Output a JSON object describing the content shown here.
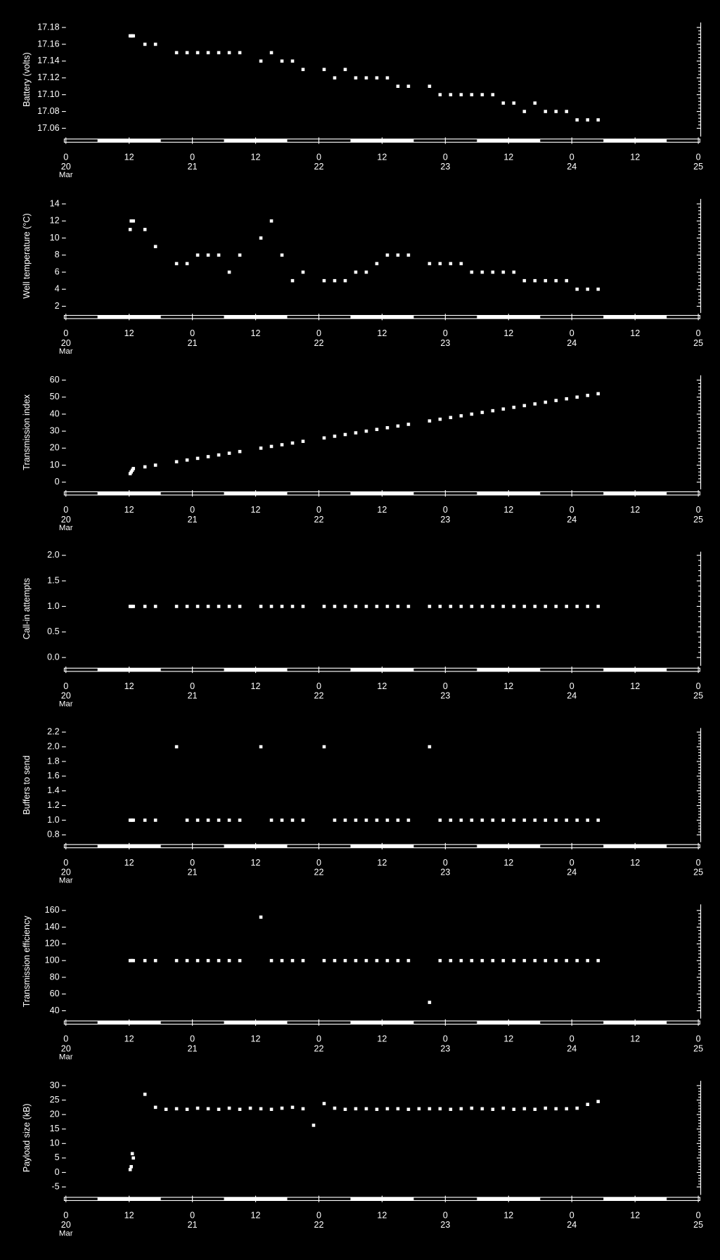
{
  "chart_data": [
    {
      "type": "scatter",
      "ylabel": "Battery (volts)",
      "color": "#ffffff",
      "x": [
        12.2,
        12.4,
        12.6,
        12.8,
        15,
        17,
        21,
        23,
        25,
        27,
        29,
        31,
        33,
        37,
        39,
        41,
        43,
        45,
        49,
        51,
        53,
        55,
        57,
        59,
        61,
        63,
        65,
        69,
        71,
        73,
        75,
        77,
        79,
        81,
        83,
        85,
        87,
        89,
        91,
        93,
        95,
        97,
        99,
        101
      ],
      "values": [
        17.17,
        17.17,
        17.17,
        17.17,
        17.16,
        17.16,
        17.15,
        17.15,
        17.15,
        17.15,
        17.15,
        17.15,
        17.15,
        17.14,
        17.15,
        17.14,
        17.14,
        17.13,
        17.13,
        17.12,
        17.13,
        17.12,
        17.12,
        17.12,
        17.12,
        17.11,
        17.11,
        17.11,
        17.1,
        17.1,
        17.1,
        17.1,
        17.1,
        17.1,
        17.09,
        17.09,
        17.08,
        17.09,
        17.08,
        17.08,
        17.08,
        17.07,
        17.07,
        17.07
      ],
      "xlim": [
        0,
        120
      ],
      "xticks": [
        0,
        12,
        {
          "value": 24,
          "label": "0"
        },
        {
          "value": 36,
          "label": "12"
        },
        {
          "value": 48,
          "label": "0"
        },
        {
          "value": 60,
          "label": "12"
        },
        {
          "value": 72,
          "label": "0"
        },
        {
          "value": 84,
          "label": "12"
        },
        {
          "value": 96,
          "label": "0"
        },
        {
          "value": 108,
          "label": "12"
        },
        {
          "value": 120,
          "label": "0"
        }
      ],
      "xday_labels": [
        {
          "value": 0,
          "label": "20"
        },
        {
          "value": 24,
          "label": "21"
        },
        {
          "value": 48,
          "label": "22"
        },
        {
          "value": 72,
          "label": "23"
        },
        {
          "value": 96,
          "label": "24"
        },
        {
          "value": 120,
          "label": "25"
        }
      ],
      "xmonth": "Mar",
      "ylim": [
        17.052,
        17.184
      ],
      "yticks": [
        17.06,
        17.08,
        {
          "value": 17.1,
          "label": "17.10"
        },
        17.12,
        17.14,
        17.16,
        17.18
      ]
    },
    {
      "type": "scatter",
      "ylabel": "Well temperature (°C)",
      "color": "#ffffff",
      "x": [
        12.2,
        12.4,
        12.6,
        12.8,
        15,
        17,
        21,
        23,
        25,
        27,
        29,
        31,
        33,
        37,
        39,
        41,
        43,
        45,
        49,
        51,
        53,
        55,
        57,
        59,
        61,
        63,
        65,
        69,
        71,
        73,
        75,
        77,
        79,
        81,
        83,
        85,
        87,
        89,
        91,
        93,
        95,
        97,
        99,
        101
      ],
      "values": [
        11,
        12,
        12,
        12,
        11,
        9,
        7,
        7,
        8,
        8,
        8,
        6,
        8,
        10,
        12,
        8,
        5,
        6,
        5,
        5,
        5,
        6,
        6,
        7,
        8,
        8,
        8,
        7,
        7,
        7,
        7,
        6,
        6,
        6,
        6,
        6,
        5,
        5,
        5,
        5,
        5,
        4,
        4,
        4
      ],
      "xlim": [
        0,
        120
      ],
      "xticks": [
        0,
        12,
        {
          "value": 24,
          "label": "0"
        },
        {
          "value": 36,
          "label": "12"
        },
        {
          "value": 48,
          "label": "0"
        },
        {
          "value": 60,
          "label": "12"
        },
        {
          "value": 72,
          "label": "0"
        },
        {
          "value": 84,
          "label": "12"
        },
        {
          "value": 96,
          "label": "0"
        },
        {
          "value": 108,
          "label": "12"
        },
        {
          "value": 120,
          "label": "0"
        }
      ],
      "xday_labels": [
        {
          "value": 0,
          "label": "20"
        },
        {
          "value": 24,
          "label": "21"
        },
        {
          "value": 48,
          "label": "22"
        },
        {
          "value": 72,
          "label": "23"
        },
        {
          "value": 96,
          "label": "24"
        },
        {
          "value": 120,
          "label": "25"
        }
      ],
      "xmonth": "Mar",
      "ylim": [
        1.4,
        14.4
      ],
      "yticks": [
        2,
        4,
        6,
        8,
        10,
        12,
        14
      ]
    },
    {
      "type": "scatter",
      "ylabel": "Transmission index",
      "color": "#ffffff",
      "x": [
        12.2,
        12.4,
        12.6,
        12.8,
        15,
        17,
        21,
        23,
        25,
        27,
        29,
        31,
        33,
        37,
        39,
        41,
        43,
        45,
        49,
        51,
        53,
        55,
        57,
        59,
        61,
        63,
        65,
        69,
        71,
        73,
        75,
        77,
        79,
        81,
        83,
        85,
        87,
        89,
        91,
        93,
        95,
        97,
        99,
        101
      ],
      "values": [
        5,
        6,
        7,
        8,
        9,
        10,
        12,
        13,
        14,
        15,
        16,
        17,
        18,
        20,
        21,
        22,
        23,
        24,
        26,
        27,
        28,
        29,
        30,
        31,
        32,
        33,
        34,
        36,
        37,
        38,
        39,
        40,
        41,
        42,
        43,
        44,
        45,
        46,
        47,
        48,
        49,
        50,
        51,
        52
      ],
      "xlim": [
        0,
        120
      ],
      "xticks": [
        0,
        12,
        {
          "value": 24,
          "label": "0"
        },
        {
          "value": 36,
          "label": "12"
        },
        {
          "value": 48,
          "label": "0"
        },
        {
          "value": 60,
          "label": "12"
        },
        {
          "value": 72,
          "label": "0"
        },
        {
          "value": 84,
          "label": "12"
        },
        {
          "value": 96,
          "label": "0"
        },
        {
          "value": 108,
          "label": "12"
        },
        {
          "value": 120,
          "label": "0"
        }
      ],
      "xday_labels": [
        {
          "value": 0,
          "label": "20"
        },
        {
          "value": 24,
          "label": "21"
        },
        {
          "value": 48,
          "label": "22"
        },
        {
          "value": 72,
          "label": "23"
        },
        {
          "value": 96,
          "label": "24"
        },
        {
          "value": 120,
          "label": "25"
        }
      ],
      "xmonth": "Mar",
      "ylim": [
        -3.3,
        61.9
      ],
      "yticks": [
        0,
        10,
        20,
        30,
        40,
        50,
        60
      ]
    },
    {
      "type": "scatter",
      "ylabel": "Call-in attempts",
      "color": "#ffffff",
      "x": [
        12.2,
        12.4,
        12.6,
        12.8,
        15,
        17,
        21,
        23,
        25,
        27,
        29,
        31,
        33,
        37,
        39,
        41,
        43,
        45,
        49,
        51,
        53,
        55,
        57,
        59,
        61,
        63,
        65,
        69,
        71,
        73,
        75,
        77,
        79,
        81,
        83,
        85,
        87,
        89,
        91,
        93,
        95,
        97,
        99,
        101
      ],
      "values": [
        1,
        1,
        1,
        1,
        1,
        1,
        1,
        1,
        1,
        1,
        1,
        1,
        1,
        1,
        1,
        1,
        1,
        1,
        1,
        1,
        1,
        1,
        1,
        1,
        1,
        1,
        1,
        1,
        1,
        1,
        1,
        1,
        1,
        1,
        1,
        1,
        1,
        1,
        1,
        1,
        1,
        1,
        1,
        1
      ],
      "xlim": [
        0,
        120
      ],
      "xticks": [
        0,
        12,
        {
          "value": 24,
          "label": "0"
        },
        {
          "value": 36,
          "label": "12"
        },
        {
          "value": 48,
          "label": "0"
        },
        {
          "value": 60,
          "label": "12"
        },
        {
          "value": 72,
          "label": "0"
        },
        {
          "value": 84,
          "label": "12"
        },
        {
          "value": 96,
          "label": "0"
        },
        {
          "value": 108,
          "label": "12"
        },
        {
          "value": 120,
          "label": "0"
        }
      ],
      "xday_labels": [
        {
          "value": 0,
          "label": "20"
        },
        {
          "value": 24,
          "label": "21"
        },
        {
          "value": 48,
          "label": "22"
        },
        {
          "value": 72,
          "label": "23"
        },
        {
          "value": 96,
          "label": "24"
        },
        {
          "value": 120,
          "label": "25"
        }
      ],
      "xmonth": "Mar",
      "ylim": [
        -0.13,
        2.04
      ],
      "yticks": [
        {
          "value": 0,
          "label": "0.0"
        },
        0.5,
        {
          "value": 1,
          "label": "1.0"
        },
        1.5,
        {
          "value": 2,
          "label": "2.0"
        }
      ]
    },
    {
      "type": "scatter",
      "ylabel": "Buffers to send",
      "color": "#ffffff",
      "x": [
        12.2,
        12.4,
        12.6,
        12.8,
        15,
        17,
        21,
        23,
        25,
        27,
        29,
        31,
        33,
        37,
        39,
        41,
        43,
        45,
        49,
        51,
        53,
        55,
        57,
        59,
        61,
        63,
        65,
        69,
        71,
        73,
        75,
        77,
        79,
        81,
        83,
        85,
        87,
        89,
        91,
        93,
        95,
        97,
        99,
        101
      ],
      "values": [
        1,
        1,
        1,
        1,
        1,
        1,
        2,
        1,
        1,
        1,
        1,
        1,
        1,
        2,
        1,
        1,
        1,
        1,
        2,
        1,
        1,
        1,
        1,
        1,
        1,
        1,
        1,
        2,
        1,
        1,
        1,
        1,
        1,
        1,
        1,
        1,
        1,
        1,
        1,
        1,
        1,
        1,
        1,
        1
      ],
      "xlim": [
        0,
        120
      ],
      "xticks": [
        0,
        12,
        {
          "value": 24,
          "label": "0"
        },
        {
          "value": 36,
          "label": "12"
        },
        {
          "value": 48,
          "label": "0"
        },
        {
          "value": 60,
          "label": "12"
        },
        {
          "value": 72,
          "label": "0"
        },
        {
          "value": 84,
          "label": "12"
        },
        {
          "value": 96,
          "label": "0"
        },
        {
          "value": 108,
          "label": "12"
        },
        {
          "value": 120,
          "label": "0"
        }
      ],
      "xday_labels": [
        {
          "value": 0,
          "label": "20"
        },
        {
          "value": 24,
          "label": "21"
        },
        {
          "value": 48,
          "label": "22"
        },
        {
          "value": 72,
          "label": "23"
        },
        {
          "value": 96,
          "label": "24"
        },
        {
          "value": 120,
          "label": "25"
        }
      ],
      "xmonth": "Mar",
      "ylim": [
        0.723,
        2.233
      ],
      "yticks": [
        0.8,
        {
          "value": 1,
          "label": "1.0"
        },
        1.2,
        1.4,
        1.6,
        1.8,
        {
          "value": 2,
          "label": "2.0"
        },
        2.2
      ]
    },
    {
      "type": "scatter",
      "ylabel": "Transmission efficiency",
      "color": "#ffffff",
      "x": [
        12.2,
        12.4,
        12.6,
        12.8,
        15,
        17,
        21,
        23,
        25,
        27,
        29,
        31,
        33,
        37,
        39,
        41,
        43,
        45,
        49,
        51,
        53,
        55,
        57,
        59,
        61,
        63,
        65,
        69,
        71,
        73,
        75,
        77,
        79,
        81,
        83,
        85,
        87,
        89,
        91,
        93,
        95,
        97,
        99,
        101
      ],
      "values": [
        100,
        100,
        100,
        100,
        100,
        100,
        100,
        100,
        100,
        100,
        100,
        100,
        100,
        152,
        100,
        100,
        100,
        100,
        100,
        100,
        100,
        100,
        100,
        100,
        100,
        100,
        100,
        50,
        100,
        100,
        100,
        100,
        100,
        100,
        100,
        100,
        100,
        100,
        100,
        100,
        100,
        100,
        100,
        100
      ],
      "xlim": [
        0,
        120
      ],
      "xticks": [
        0,
        12,
        {
          "value": 24,
          "label": "0"
        },
        {
          "value": 36,
          "label": "12"
        },
        {
          "value": 48,
          "label": "0"
        },
        {
          "value": 60,
          "label": "12"
        },
        {
          "value": 72,
          "label": "0"
        },
        {
          "value": 84,
          "label": "12"
        },
        {
          "value": 96,
          "label": "0"
        },
        {
          "value": 108,
          "label": "12"
        },
        {
          "value": 120,
          "label": "0"
        }
      ],
      "xday_labels": [
        {
          "value": 0,
          "label": "20"
        },
        {
          "value": 24,
          "label": "21"
        },
        {
          "value": 48,
          "label": "22"
        },
        {
          "value": 72,
          "label": "23"
        },
        {
          "value": 96,
          "label": "24"
        },
        {
          "value": 120,
          "label": "25"
        }
      ],
      "xmonth": "Mar",
      "ylim": [
        32.6,
        165.3
      ],
      "yticks": [
        40,
        60,
        80,
        100,
        120,
        140,
        160
      ]
    },
    {
      "type": "scatter",
      "ylabel": "Payload size (kB)",
      "color": "#ffffff",
      "x": [
        12.2,
        12.4,
        12.6,
        12.8,
        15,
        17,
        19,
        21,
        23,
        25,
        27,
        29,
        31,
        33,
        35,
        37,
        39,
        41,
        43,
        45,
        47,
        49,
        51,
        53,
        55,
        57,
        59,
        61,
        63,
        65,
        67,
        69,
        71,
        73,
        75,
        77,
        79,
        81,
        83,
        85,
        87,
        89,
        91,
        93,
        95,
        97,
        99,
        101
      ],
      "values": [
        1,
        2,
        6.5,
        5,
        27,
        22.5,
        21.8,
        22,
        21.8,
        22.2,
        22,
        21.8,
        22.2,
        21.8,
        22.2,
        22,
        21.8,
        22.2,
        22.5,
        22,
        16.3,
        23.8,
        22.2,
        21.8,
        22,
        22,
        21.8,
        22,
        22,
        21.8,
        22,
        22,
        22,
        21.8,
        22,
        22.2,
        22,
        21.8,
        22.2,
        21.8,
        22,
        21.8,
        22.2,
        22,
        22,
        22.2,
        23.5,
        24.5
      ],
      "xlim": [
        0,
        120
      ],
      "xticks": [
        0,
        12,
        {
          "value": 24,
          "label": "0"
        },
        {
          "value": 36,
          "label": "12"
        },
        {
          "value": 48,
          "label": "0"
        },
        {
          "value": 60,
          "label": "12"
        },
        {
          "value": 72,
          "label": "0"
        },
        {
          "value": 84,
          "label": "12"
        },
        {
          "value": 96,
          "label": "0"
        },
        {
          "value": 108,
          "label": "12"
        },
        {
          "value": 120,
          "label": "0"
        }
      ],
      "xday_labels": [
        {
          "value": 0,
          "label": "20"
        },
        {
          "value": 24,
          "label": "21"
        },
        {
          "value": 48,
          "label": "22"
        },
        {
          "value": 72,
          "label": "23"
        },
        {
          "value": 96,
          "label": "24"
        },
        {
          "value": 120,
          "label": "25"
        }
      ],
      "xmonth": "Mar",
      "ylim": [
        -7.2,
        31.1
      ],
      "yticks": [
        -5,
        0,
        5,
        10,
        15,
        20,
        25,
        30
      ]
    }
  ]
}
